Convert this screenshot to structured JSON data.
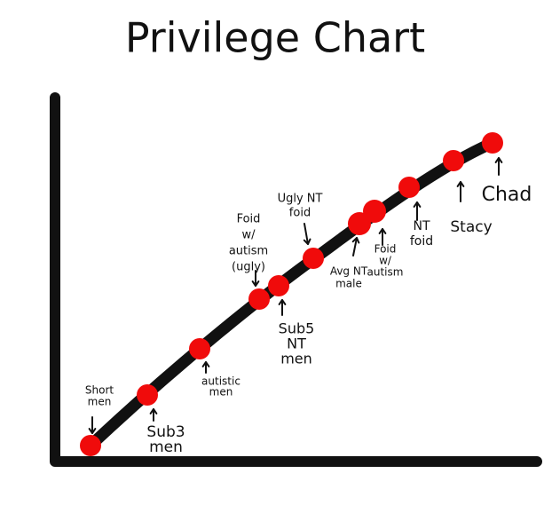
{
  "title": "Privilege Chart",
  "points": [
    {
      "label": [
        "Short",
        "men"
      ]
    },
    {
      "label": [
        "Sub3",
        "men"
      ]
    },
    {
      "label": [
        "autistic",
        "men"
      ]
    },
    {
      "label": [
        "Foid",
        "w/",
        "autism",
        "(ugly)"
      ]
    },
    {
      "label": [
        "Sub5",
        "NT",
        "men"
      ]
    },
    {
      "label": [
        "Ugly NT",
        "foid"
      ]
    },
    {
      "label": [
        "Avg NT",
        "male"
      ]
    },
    {
      "label": [
        "Foid",
        "w/",
        "autism"
      ]
    },
    {
      "label": [
        "NT",
        "foid"
      ]
    },
    {
      "label": [
        "Stacy"
      ]
    },
    {
      "label": [
        "Chad"
      ]
    }
  ]
}
